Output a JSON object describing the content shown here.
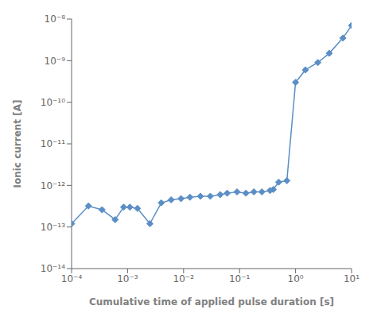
{
  "chart_data": {
    "type": "line",
    "x": [
      0.0001,
      0.0002,
      0.00035,
      0.0006,
      0.00085,
      0.0011,
      0.0015,
      0.0025,
      0.004,
      0.006,
      0.009,
      0.013,
      0.02,
      0.03,
      0.045,
      0.06,
      0.09,
      0.13,
      0.18,
      0.25,
      0.35,
      0.4,
      0.5,
      0.7,
      1.0,
      1.5,
      2.5,
      4.0,
      7.0,
      10.0
    ],
    "values": [
      1.2e-13,
      3.2e-13,
      2.6e-13,
      1.5e-13,
      3e-13,
      3e-13,
      2.8e-13,
      1.2e-13,
      3.8e-13,
      4.5e-13,
      4.8e-13,
      5.2e-13,
      5.5e-13,
      5.5e-13,
      6e-13,
      6.5e-13,
      7e-13,
      6.5e-13,
      7e-13,
      7e-13,
      7.5e-13,
      8e-13,
      1.2e-12,
      1.3e-12,
      3e-10,
      6e-10,
      9e-10,
      1.5e-09,
      3.5e-09,
      7e-09
    ],
    "color": "#5b8ec5",
    "marker": "diamond",
    "xlabel": "Cumulative time of applied pulse duration [s]",
    "ylabel": "Ionic current [A]",
    "xlim": [
      0.0001,
      10.0
    ],
    "ylim": [
      1e-14,
      1e-08
    ],
    "xticks": [
      {
        "value": 0.0001,
        "label": "10⁻⁴"
      },
      {
        "value": 0.001,
        "label": "10⁻³"
      },
      {
        "value": 0.01,
        "label": "10⁻²"
      },
      {
        "value": 0.1,
        "label": "10⁻¹"
      },
      {
        "value": 1,
        "label": "10⁰"
      },
      {
        "value": 10,
        "label": "10¹"
      }
    ],
    "yticks": [
      {
        "value": 1e-14,
        "label": "10⁻¹⁴"
      },
      {
        "value": 1e-13,
        "label": "10⁻¹³"
      },
      {
        "value": 1e-12,
        "label": "10⁻¹²"
      },
      {
        "value": 1e-11,
        "label": "10⁻¹¹"
      },
      {
        "value": 1e-10,
        "label": "10⁻¹⁰"
      },
      {
        "value": 1e-09,
        "label": "10⁻⁹"
      },
      {
        "value": 1e-08,
        "label": "10⁻⁸"
      }
    ],
    "log": true,
    "grid": false
  }
}
